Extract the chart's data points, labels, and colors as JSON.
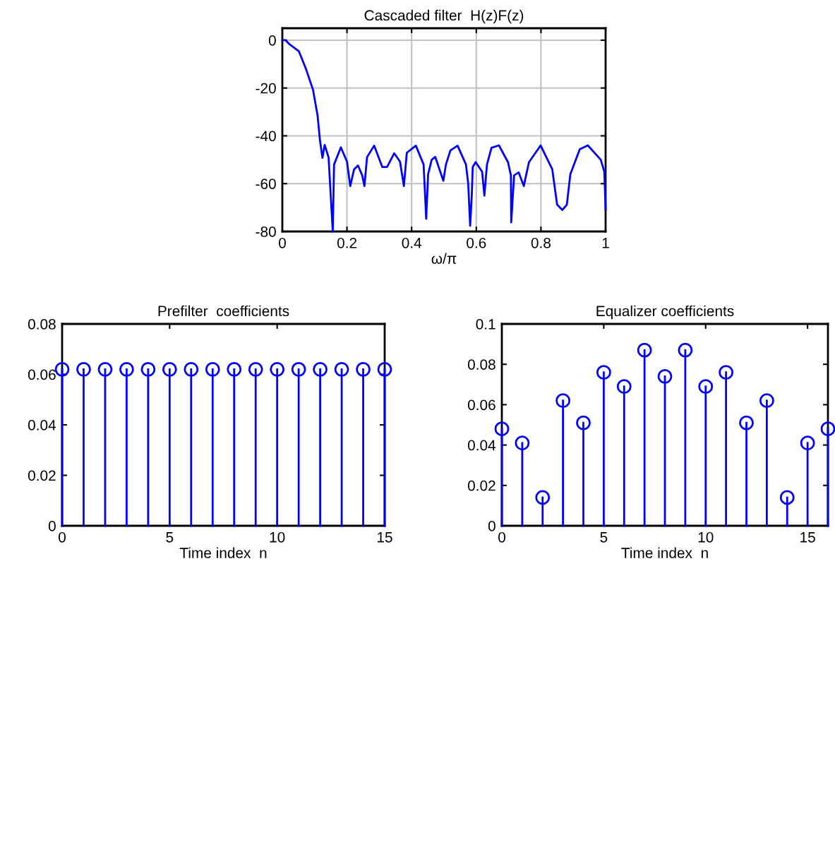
{
  "chart_data": [
    {
      "type": "line",
      "title": "Cascaded filter  H(z)F(z)",
      "xlabel": "ω/π",
      "color": "#0000ff",
      "grid": true,
      "marker": "none",
      "line_style": "solid",
      "x": [
        0,
        0.01,
        0.022,
        0.051,
        0.073,
        0.095,
        0.109,
        0.116,
        0.124,
        0.131,
        0.143,
        0.156,
        0.16,
        0.181,
        0.2,
        0.21,
        0.222,
        0.234,
        0.247,
        0.254,
        0.262,
        0.284,
        0.309,
        0.324,
        0.346,
        0.364,
        0.376,
        0.385,
        0.413,
        0.437,
        0.445,
        0.451,
        0.462,
        0.473,
        0.498,
        0.506,
        0.52,
        0.542,
        0.568,
        0.575,
        0.581,
        0.586,
        0.589,
        0.598,
        0.618,
        0.625,
        0.633,
        0.647,
        0.67,
        0.698,
        0.707,
        0.708,
        0.717,
        0.731,
        0.747,
        0.754,
        0.763,
        0.799,
        0.835,
        0.85,
        0.866,
        0.88,
        0.891,
        0.92,
        0.945,
        0.985,
        0.996,
        1.0
      ],
      "values": [
        0,
        0,
        -1.7,
        -4.6,
        -12,
        -20.8,
        -31.5,
        -41.4,
        -49.2,
        -43.8,
        -49,
        -80,
        -52,
        -44.8,
        -50.8,
        -61,
        -54,
        -52.4,
        -56.5,
        -61,
        -48.9,
        -44.1,
        -53,
        -53,
        -47.3,
        -50.8,
        -61,
        -47.1,
        -44.1,
        -52,
        -74.7,
        -56,
        -50,
        -48.8,
        -58.8,
        -52,
        -46.1,
        -44.1,
        -52,
        -60,
        -77.6,
        -65,
        -53,
        -51,
        -55,
        -65,
        -52,
        -45,
        -44,
        -51,
        -56.5,
        -76.2,
        -56.5,
        -55.3,
        -61,
        -56.5,
        -51,
        -44,
        -54,
        -68.8,
        -71,
        -68.8,
        -56,
        -45.6,
        -44,
        -50,
        -55,
        -70.8
      ],
      "xlim": [
        0,
        1
      ],
      "ylim": [
        -80,
        5
      ],
      "xticks": [
        0,
        0.2,
        0.4,
        0.6,
        0.8,
        1
      ],
      "yticks": [
        0,
        -20,
        -40,
        -60,
        -80
      ]
    },
    {
      "type": "lollipop",
      "title": "Prefilter  coefficients",
      "xlabel": "Time index  n",
      "color": "#0000ff",
      "marker": "circle",
      "x": [
        0,
        1,
        2,
        3,
        4,
        5,
        6,
        7,
        8,
        9,
        10,
        11,
        12,
        13,
        14,
        15
      ],
      "values": [
        0.062,
        0.062,
        0.062,
        0.062,
        0.062,
        0.062,
        0.062,
        0.062,
        0.062,
        0.062,
        0.062,
        0.062,
        0.062,
        0.062,
        0.062,
        0.062
      ],
      "xlim": [
        0,
        15
      ],
      "ylim": [
        0,
        0.08
      ],
      "xticks": [
        0,
        5,
        10,
        15
      ],
      "yticks": [
        0,
        0.02,
        0.04,
        0.06,
        0.08
      ]
    },
    {
      "type": "lollipop",
      "title": "Equalizer coefficients",
      "xlabel": "Time index  n",
      "color": "#0000ff",
      "marker": "circle",
      "x": [
        0,
        1,
        2,
        3,
        4,
        5,
        6,
        7,
        8,
        9,
        10,
        11,
        12,
        13,
        14,
        15,
        16
      ],
      "values": [
        0.048,
        0.041,
        0.014,
        0.062,
        0.051,
        0.076,
        0.069,
        0.087,
        0.074,
        0.087,
        0.069,
        0.076,
        0.051,
        0.062,
        0.014,
        0.041,
        0.048
      ],
      "xlim": [
        0,
        16
      ],
      "ylim": [
        0,
        0.1
      ],
      "xticks": [
        0,
        5,
        10,
        15
      ],
      "yticks": [
        0,
        0.02,
        0.04,
        0.06,
        0.08,
        0.1
      ]
    }
  ]
}
